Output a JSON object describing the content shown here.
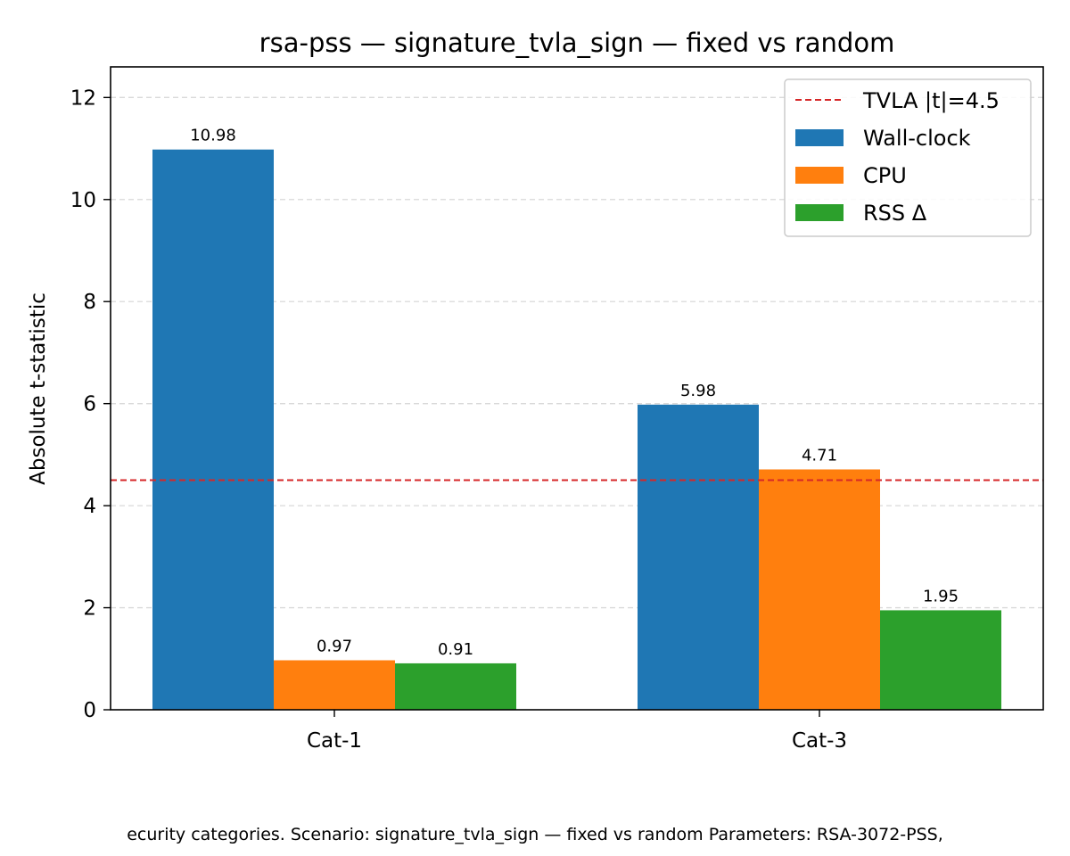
{
  "chart_data": {
    "type": "bar",
    "title": "rsa-pss — signature_tvla_sign — fixed vs random",
    "xlabel": "",
    "ylabel": "Absolute t-statistic",
    "categories": [
      "Cat-1",
      "Cat-3"
    ],
    "series": [
      {
        "name": "Wall-clock",
        "values": [
          10.98,
          5.98
        ],
        "color": "#1f77b4"
      },
      {
        "name": "CPU",
        "values": [
          0.97,
          4.71
        ],
        "color": "#ff7f0e"
      },
      {
        "name": "RSS Δ",
        "values": [
          0.91,
          1.95
        ],
        "color": "#2ca02c"
      }
    ],
    "threshold": {
      "label": "TVLA |t|=4.5",
      "value": 4.5,
      "color": "#d62728",
      "style": "dashed"
    },
    "data_labels": [
      [
        "10.98",
        "5.98"
      ],
      [
        "0.97",
        "4.71"
      ],
      [
        "0.91",
        "1.95"
      ]
    ],
    "ylim": [
      0,
      12.6
    ],
    "yticks": [
      0,
      2,
      4,
      6,
      8,
      10,
      12
    ],
    "grid": "y-dashed",
    "legend_position": "top-right"
  },
  "caption": "ecurity categories. Scenario: signature_tvla_sign — fixed vs random Parameters: RSA-3072-PSS,"
}
